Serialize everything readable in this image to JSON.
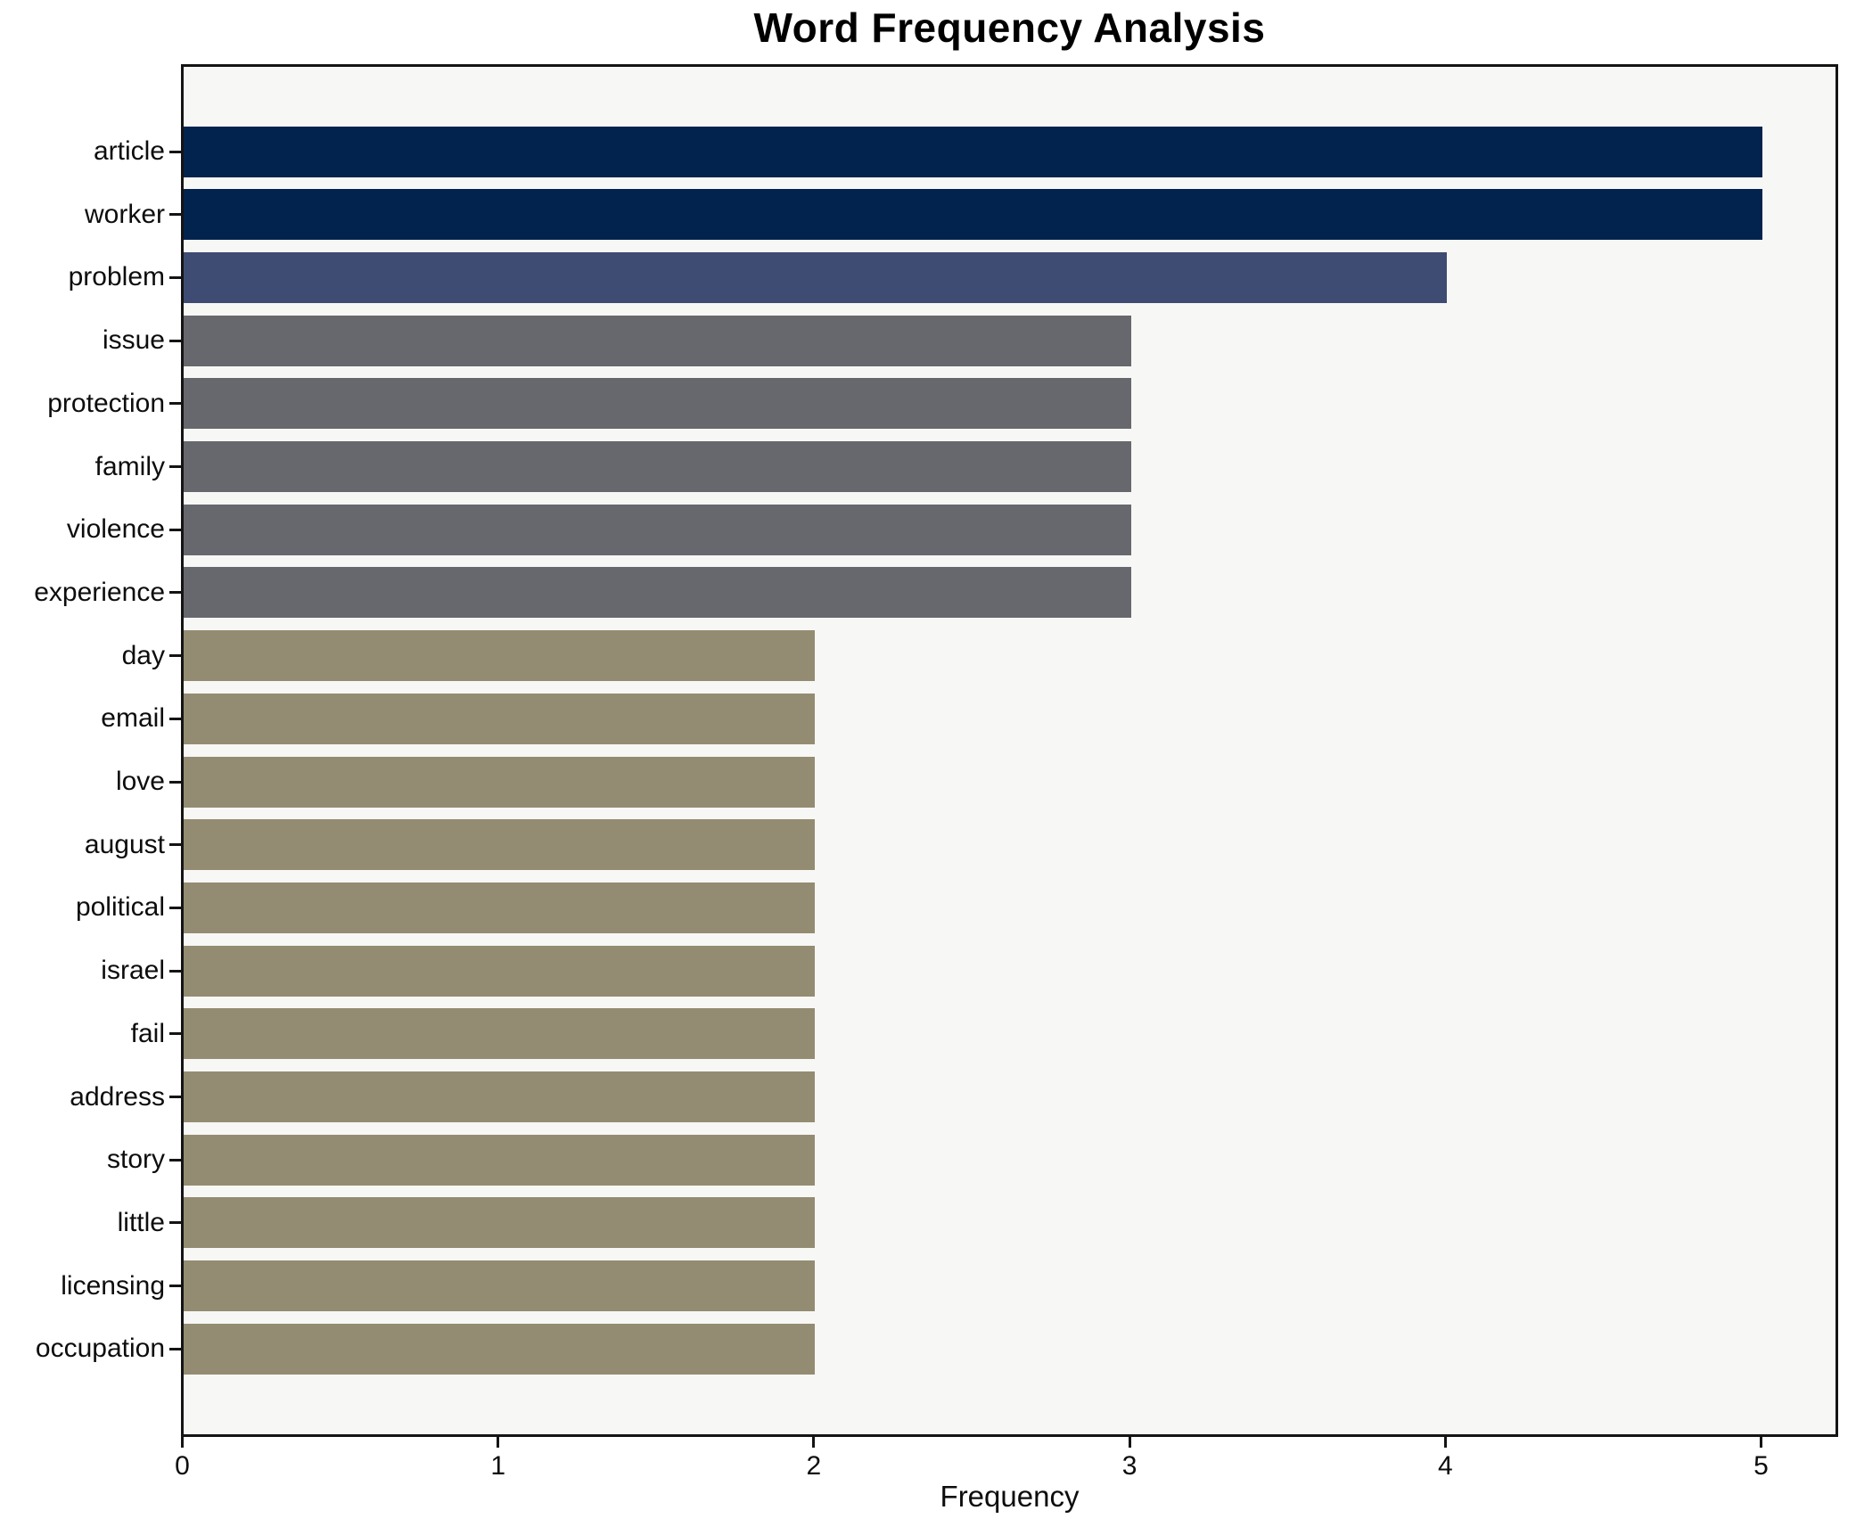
{
  "title": "Word Frequency Analysis",
  "x_axis": {
    "label": "Frequency",
    "ticks": [
      "0",
      "1",
      "2",
      "3",
      "4",
      "5"
    ]
  },
  "chart_data": {
    "type": "bar",
    "orientation": "horizontal",
    "title": "Word Frequency Analysis",
    "xlabel": "Frequency",
    "ylabel": "",
    "xlim": [
      0,
      5
    ],
    "grid": false,
    "legend": "none",
    "plot_background": "#f7f7f5",
    "spine_color": "#141414",
    "categories": [
      "article",
      "worker",
      "problem",
      "issue",
      "protection",
      "family",
      "violence",
      "experience",
      "day",
      "email",
      "love",
      "august",
      "political",
      "israel",
      "fail",
      "address",
      "story",
      "little",
      "licensing",
      "occupation"
    ],
    "values": [
      5,
      5,
      4,
      3,
      3,
      3,
      3,
      3,
      2,
      2,
      2,
      2,
      2,
      2,
      2,
      2,
      2,
      2,
      2,
      2
    ],
    "value_colors": {
      "5": "#03234f",
      "4": "#3e4c74",
      "3": "#67686e",
      "2": "#948c72"
    }
  }
}
